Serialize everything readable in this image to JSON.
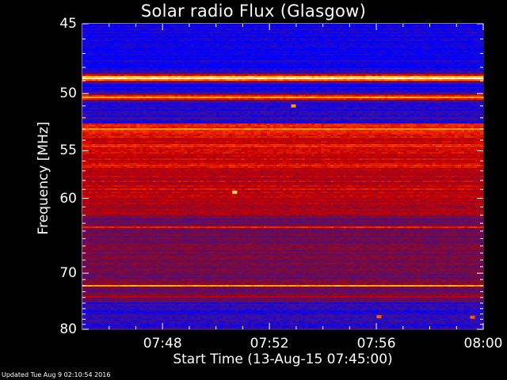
{
  "chart_data": {
    "type": "heatmap",
    "title": "Solar radio Flux (Glasgow)",
    "ylabel": "Frequency [MHz]",
    "xlabel": "Start Time (13-Aug-15 07:45:00)",
    "x_tick_labels": [
      "07:48",
      "07:52",
      "07:56",
      "08:00"
    ],
    "x_ticks_minutes_after_start": [
      3,
      7,
      11,
      15
    ],
    "xlim_minutes_after_start": [
      0,
      15
    ],
    "y_tick_labels": [
      "45",
      "50",
      "55",
      "60",
      "70",
      "80"
    ],
    "y_ticks_mhz": [
      45,
      50,
      55,
      60,
      70,
      80
    ],
    "ylim_mhz": [
      45,
      80
    ],
    "y_scale": "reciprocal",
    "colormap": [
      "#0000ff",
      "#3a0fa0",
      "#7a0a3a",
      "#c80000",
      "#ff4000",
      "#ffb000",
      "#ffffff"
    ],
    "bands": [
      {
        "mhz": 48.8,
        "level": 1.0
      },
      {
        "mhz": 50.3,
        "level": 0.75
      },
      {
        "mhz": 53.0,
        "level": 0.85
      },
      {
        "mhz": 54.5,
        "level": 0.7
      },
      {
        "mhz": 56.5,
        "level": 0.65
      },
      {
        "mhz": 59.0,
        "level": 0.6
      },
      {
        "mhz": 63.5,
        "level": 0.55
      },
      {
        "mhz": 67.5,
        "level": 0.45
      },
      {
        "mhz": 72.0,
        "level": 0.8
      },
      {
        "mhz": 73.8,
        "level": 0.6
      }
    ],
    "bursts": [
      {
        "minute": 5.7,
        "mhz": 59.3,
        "level": 0.9
      },
      {
        "minute": 7.9,
        "mhz": 51.0,
        "level": 0.8
      },
      {
        "minute": 11.1,
        "mhz": 77.5,
        "level": 0.7
      },
      {
        "minute": 14.6,
        "mhz": 77.6,
        "level": 0.7
      }
    ]
  },
  "footer": {
    "updated": "Updated Tue Aug  9 02:10:54 2016"
  }
}
